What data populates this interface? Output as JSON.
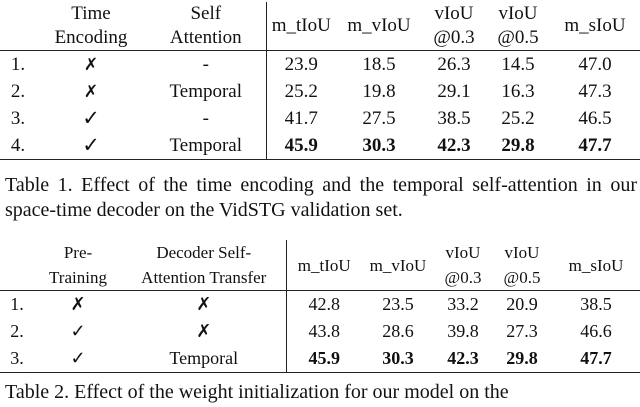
{
  "table1": {
    "headers": {
      "col1": [
        "Time",
        "Encoding"
      ],
      "col2": [
        "Self",
        "Attention"
      ],
      "metrics": [
        [
          "m_tIoU"
        ],
        [
          "m_vIoU"
        ],
        [
          "vIoU",
          "@0.3"
        ],
        [
          "vIoU",
          "@0.5"
        ],
        [
          "m_sIoU"
        ]
      ]
    },
    "rows": [
      {
        "idx": "1.",
        "time": "✗",
        "attn": "-",
        "vals": [
          "23.9",
          "18.5",
          "26.3",
          "14.5",
          "47.0"
        ]
      },
      {
        "idx": "2.",
        "time": "✗",
        "attn": "Temporal",
        "vals": [
          "25.2",
          "19.8",
          "29.1",
          "16.3",
          "47.3"
        ]
      },
      {
        "idx": "3.",
        "time": "✓",
        "attn": "-",
        "vals": [
          "41.7",
          "27.5",
          "38.5",
          "25.2",
          "46.5"
        ]
      },
      {
        "idx": "4.",
        "time": "✓",
        "attn": "Temporal",
        "vals": [
          "45.9",
          "30.3",
          "42.3",
          "29.8",
          "47.7"
        ]
      }
    ],
    "caption": "Table 1. Effect of the time encoding and the temporal self-attention in our space-time decoder on the VidSTG validation set."
  },
  "table2": {
    "headers": {
      "col1": [
        "Pre-",
        "Training"
      ],
      "col2": [
        "Decoder Self-",
        "Attention Transfer"
      ],
      "metrics": [
        [
          "m_tIoU"
        ],
        [
          "m_vIoU"
        ],
        [
          "vIoU",
          "@0.3"
        ],
        [
          "vIoU",
          "@0.5"
        ],
        [
          "m_sIoU"
        ]
      ]
    },
    "rows": [
      {
        "idx": "1.",
        "pre": "✗",
        "transfer": "✗",
        "vals": [
          "42.8",
          "23.5",
          "33.2",
          "20.9",
          "38.5"
        ]
      },
      {
        "idx": "2.",
        "pre": "✓",
        "transfer": "✗",
        "vals": [
          "43.8",
          "28.6",
          "39.8",
          "27.3",
          "46.6"
        ]
      },
      {
        "idx": "3.",
        "pre": "✓",
        "transfer": "Temporal",
        "vals": [
          "45.9",
          "30.3",
          "42.3",
          "29.8",
          "47.7"
        ]
      }
    ],
    "caption": "Table 2. Effect of the weight initialization for our model on the"
  }
}
